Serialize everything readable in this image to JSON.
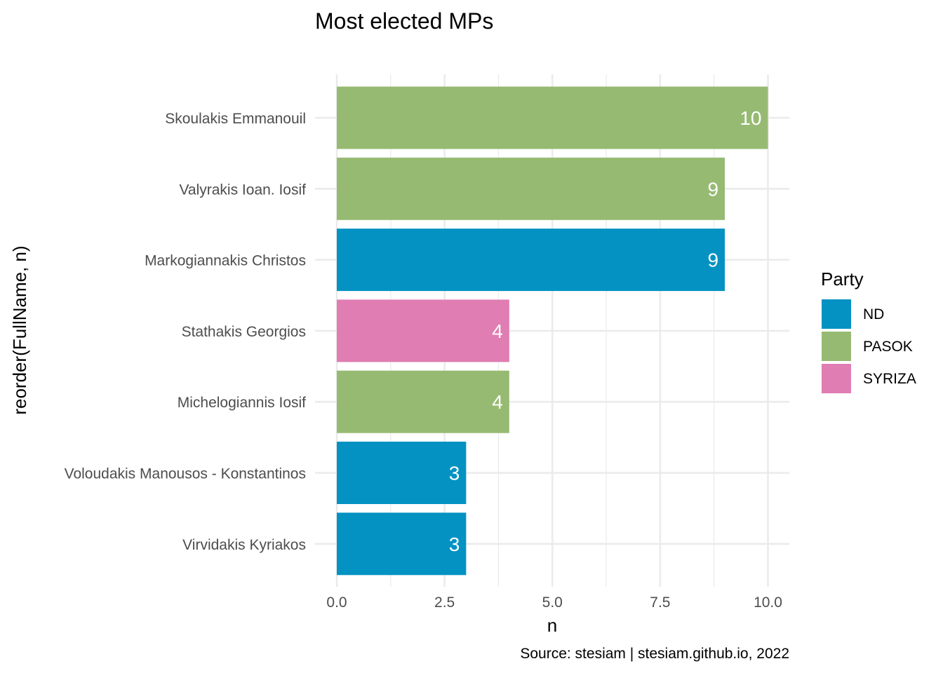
{
  "chart_data": {
    "type": "bar",
    "orientation": "horizontal",
    "title": "Most elected MPs",
    "xlabel": "n",
    "ylabel": "reorder(FullName, n)",
    "caption": "Source: stesiam | stesiam.github.io, 2022",
    "xlim": [
      0,
      10.5
    ],
    "x_ticks": [
      "0.0",
      "2.5",
      "5.0",
      "7.5",
      "10.0"
    ],
    "x_tick_values": [
      0,
      2.5,
      5,
      7.5,
      10
    ],
    "grid": true,
    "legend": {
      "title": "Party",
      "position": "right",
      "entries": [
        {
          "label": "ND",
          "color": "#0492c2"
        },
        {
          "label": "PASOK",
          "color": "#97ba72"
        },
        {
          "label": "SYRIZA",
          "color": "#e07db2"
        }
      ]
    },
    "bars": [
      {
        "name": "Skoulakis Emmanouil",
        "value": 10,
        "label": "10",
        "party": "PASOK"
      },
      {
        "name": "Valyrakis Ioan. Iosif",
        "value": 9,
        "label": "9",
        "party": "PASOK"
      },
      {
        "name": "Markogiannakis Christos",
        "value": 9,
        "label": "9",
        "party": "ND"
      },
      {
        "name": "Stathakis Georgios",
        "value": 4,
        "label": "4",
        "party": "SYRIZA"
      },
      {
        "name": "Michelogiannis Iosif",
        "value": 4,
        "label": "4",
        "party": "PASOK"
      },
      {
        "name": "Voloudakis Manousos - Konstantinos",
        "value": 3,
        "label": "3",
        "party": "ND"
      },
      {
        "name": "Virvidakis Kyriakos",
        "value": 3,
        "label": "3",
        "party": "ND"
      }
    ]
  }
}
